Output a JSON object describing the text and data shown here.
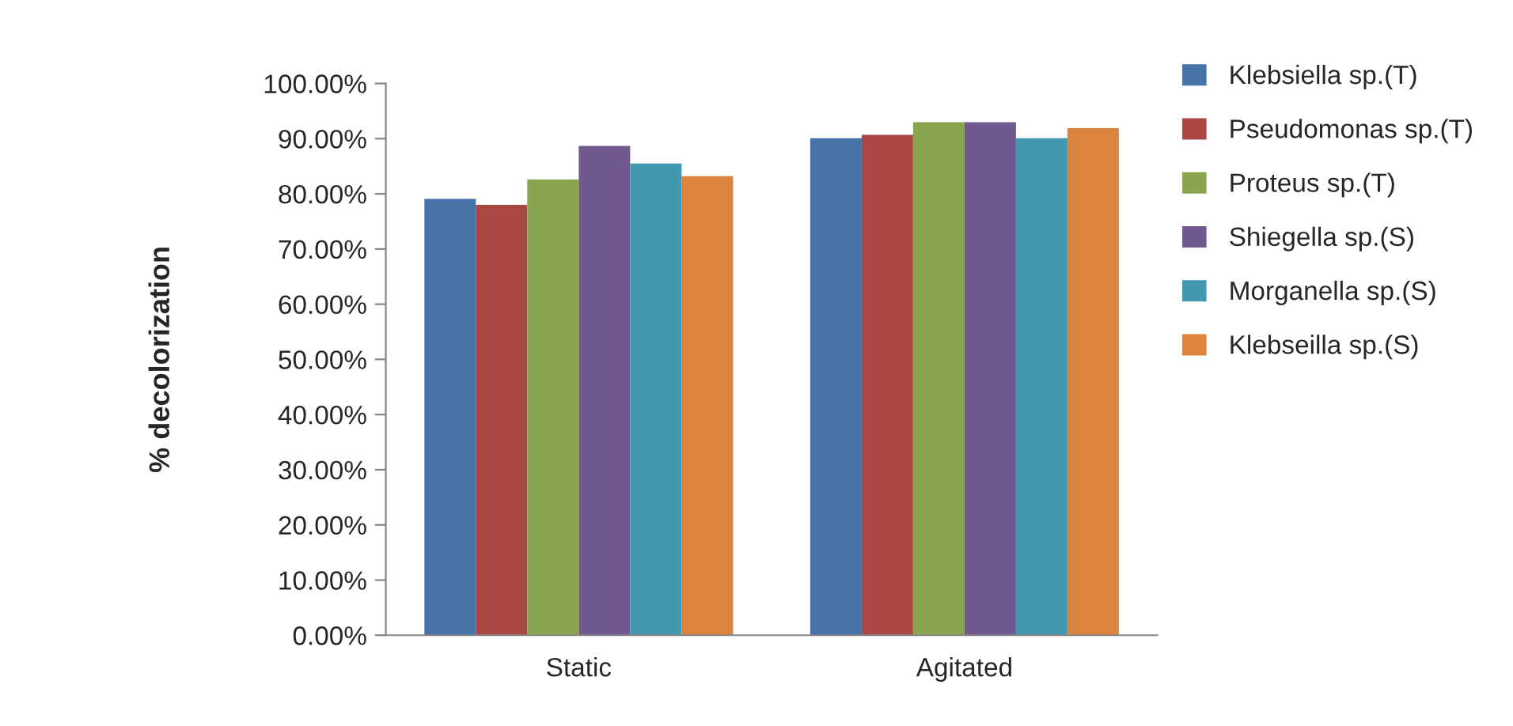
{
  "chart_data": {
    "type": "bar",
    "ylabel": "% decolorization",
    "categories": [
      "Static",
      "Agitated"
    ],
    "series": [
      {
        "name": "Klebsiella sp.(T)",
        "color": "#4572a7",
        "values": [
          79.1,
          90.1
        ]
      },
      {
        "name": "Pseudomonas sp.(T)",
        "color": "#aa4643",
        "values": [
          78.0,
          90.7
        ]
      },
      {
        "name": "Proteus sp.(T)",
        "color": "#89a54e",
        "values": [
          82.6,
          93.0
        ]
      },
      {
        "name": "Shiegella sp.(S)",
        "color": "#71588f",
        "values": [
          88.7,
          93.0
        ]
      },
      {
        "name": "Morganella sp.(S)",
        "color": "#4198af",
        "values": [
          85.5,
          90.1
        ]
      },
      {
        "name": "Klebseilla sp.(S)",
        "color": "#db843d",
        "values": [
          83.2,
          91.9
        ]
      }
    ],
    "ylim": [
      0,
      100
    ],
    "yticks": [
      {
        "value": 0,
        "label": "0.00%"
      },
      {
        "value": 10,
        "label": "10.00%"
      },
      {
        "value": 20,
        "label": "20.00%"
      },
      {
        "value": 30,
        "label": "30.00%"
      },
      {
        "value": 40,
        "label": "40.00%"
      },
      {
        "value": 50,
        "label": "50.00%"
      },
      {
        "value": 60,
        "label": "60.00%"
      },
      {
        "value": 70,
        "label": "70.00%"
      },
      {
        "value": 80,
        "label": "80.00%"
      },
      {
        "value": 90,
        "label": "90.00%"
      },
      {
        "value": 100,
        "label": "100.00%"
      }
    ],
    "grid": false,
    "legend": "right"
  }
}
